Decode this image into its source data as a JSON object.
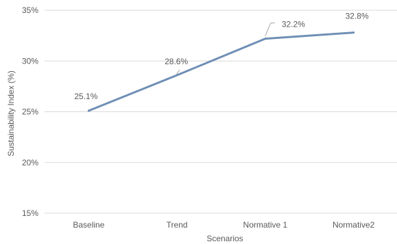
{
  "chart_data": {
    "type": "line",
    "title": "",
    "xlabel": "Scenarios",
    "ylabel": "Sustainability Index (%)",
    "categories": [
      "Baseline",
      "Trend",
      "Normative 1",
      "Normative2"
    ],
    "series": [
      {
        "values": [
          25.1,
          28.6,
          32.2,
          32.8
        ],
        "labels": [
          "25.1%",
          "28.6%",
          "32.2%",
          "32.8%"
        ]
      }
    ],
    "ylim": [
      15,
      35
    ],
    "yticks": [
      15,
      20,
      25,
      30,
      35
    ],
    "ytick_labels": [
      "15%",
      "20%",
      "25%",
      "30%",
      "35%"
    ],
    "grid": true,
    "legend": "none"
  },
  "colors": {
    "line": "#6f8fb5",
    "grid": "#d9d9d9",
    "text": "#595959",
    "leader": "#a6a6a6"
  }
}
